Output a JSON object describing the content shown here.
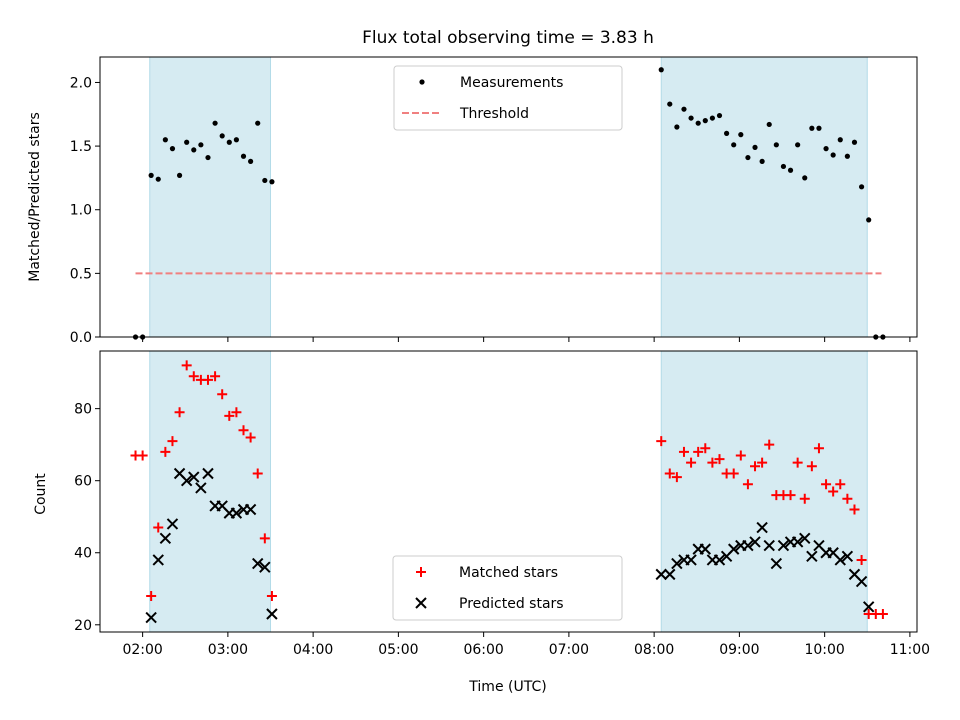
{
  "chart_data": [
    {
      "type": "scatter",
      "title": "Flux total observing time = 3.83 h",
      "xlabel": "",
      "ylabel": "Matched/Predicted stars",
      "ylim": [
        0.0,
        2.2
      ],
      "xlim": [
        "01:30",
        "11:05"
      ],
      "yticks": [
        "0.0",
        "0.5",
        "1.0",
        "1.5",
        "2.0"
      ],
      "legend_position": "top-center",
      "legend": [
        {
          "label": "Measurements",
          "marker": "dot",
          "color": "#000000"
        },
        {
          "label": "Threshold",
          "marker": "dashed-line",
          "color": "#f08080"
        }
      ],
      "observing_windows": [
        [
          "02:05",
          "03:30"
        ],
        [
          "08:05",
          "10:30"
        ]
      ],
      "threshold": {
        "value": 0.5,
        "from": "01:55",
        "to": "10:40"
      },
      "series": [
        {
          "name": "Measurements",
          "x": [
            "01:55",
            "02:00",
            "02:06",
            "02:11",
            "02:16",
            "02:21",
            "02:26",
            "02:31",
            "02:36",
            "02:41",
            "02:46",
            "02:51",
            "02:56",
            "03:01",
            "03:06",
            "03:11",
            "03:16",
            "03:21",
            "03:26",
            "03:31",
            "08:05",
            "08:11",
            "08:16",
            "08:21",
            "08:26",
            "08:31",
            "08:36",
            "08:41",
            "08:46",
            "08:51",
            "08:56",
            "09:01",
            "09:06",
            "09:11",
            "09:16",
            "09:21",
            "09:26",
            "09:31",
            "09:36",
            "09:41",
            "09:46",
            "09:51",
            "09:56",
            "10:01",
            "10:06",
            "10:11",
            "10:16",
            "10:21",
            "10:26",
            "10:31",
            "10:36",
            "10:41"
          ],
          "y": [
            0.0,
            0.0,
            1.27,
            1.24,
            1.55,
            1.48,
            1.27,
            1.53,
            1.47,
            1.51,
            1.41,
            1.68,
            1.58,
            1.53,
            1.55,
            1.42,
            1.38,
            1.68,
            1.23,
            1.22,
            2.1,
            1.83,
            1.65,
            1.79,
            1.72,
            1.68,
            1.7,
            1.72,
            1.74,
            1.6,
            1.51,
            1.59,
            1.41,
            1.49,
            1.38,
            1.67,
            1.51,
            1.34,
            1.31,
            1.51,
            1.25,
            1.64,
            1.64,
            1.48,
            1.43,
            1.55,
            1.42,
            1.53,
            1.18,
            0.92,
            0.0,
            0.0
          ]
        }
      ]
    },
    {
      "type": "scatter",
      "title": "",
      "xlabel": "Time (UTC)",
      "ylabel": "Count",
      "ylim": [
        18,
        96
      ],
      "xlim": [
        "01:30",
        "11:05"
      ],
      "yticks": [
        "20",
        "40",
        "60",
        "80"
      ],
      "xticks": [
        "02:00",
        "03:00",
        "04:00",
        "05:00",
        "06:00",
        "07:00",
        "08:00",
        "09:00",
        "10:00",
        "11:00"
      ],
      "legend_position": "bottom-center",
      "legend": [
        {
          "label": "Matched stars",
          "marker": "plus",
          "color": "#ff0000"
        },
        {
          "label": "Predicted stars",
          "marker": "x",
          "color": "#000000"
        }
      ],
      "observing_windows": [
        [
          "02:05",
          "03:30"
        ],
        [
          "08:05",
          "10:30"
        ]
      ],
      "series": [
        {
          "name": "Matched stars",
          "x": [
            "01:55",
            "02:00",
            "02:06",
            "02:11",
            "02:16",
            "02:21",
            "02:26",
            "02:31",
            "02:36",
            "02:41",
            "02:46",
            "02:51",
            "02:56",
            "03:01",
            "03:06",
            "03:11",
            "03:16",
            "03:21",
            "03:26",
            "03:31",
            "08:05",
            "08:11",
            "08:16",
            "08:21",
            "08:26",
            "08:31",
            "08:36",
            "08:41",
            "08:46",
            "08:51",
            "08:56",
            "09:01",
            "09:06",
            "09:11",
            "09:16",
            "09:21",
            "09:26",
            "09:31",
            "09:36",
            "09:41",
            "09:46",
            "09:51",
            "09:56",
            "10:01",
            "10:06",
            "10:11",
            "10:16",
            "10:21",
            "10:26",
            "10:31",
            "10:36",
            "10:41"
          ],
          "y": [
            67,
            67,
            28,
            47,
            68,
            71,
            79,
            92,
            89,
            88,
            88,
            89,
            84,
            78,
            79,
            74,
            72,
            62,
            44,
            28,
            71,
            62,
            61,
            68,
            65,
            68,
            69,
            65,
            66,
            62,
            62,
            67,
            59,
            64,
            65,
            70,
            56,
            56,
            56,
            65,
            55,
            64,
            69,
            59,
            57,
            59,
            55,
            52,
            38,
            23,
            23,
            23
          ]
        },
        {
          "name": "Predicted stars",
          "x": [
            "02:06",
            "02:11",
            "02:16",
            "02:21",
            "02:26",
            "02:31",
            "02:36",
            "02:41",
            "02:46",
            "02:51",
            "02:56",
            "03:01",
            "03:06",
            "03:11",
            "03:16",
            "03:21",
            "03:26",
            "03:31",
            "08:05",
            "08:11",
            "08:16",
            "08:21",
            "08:26",
            "08:31",
            "08:36",
            "08:41",
            "08:46",
            "08:51",
            "08:56",
            "09:01",
            "09:06",
            "09:11",
            "09:16",
            "09:21",
            "09:26",
            "09:31",
            "09:36",
            "09:41",
            "09:46",
            "09:51",
            "09:56",
            "10:01",
            "10:06",
            "10:11",
            "10:16",
            "10:21",
            "10:26",
            "10:31"
          ],
          "y": [
            22,
            38,
            44,
            48,
            62,
            60,
            61,
            58,
            62,
            53,
            53,
            51,
            51,
            52,
            52,
            37,
            36,
            23,
            34,
            34,
            37,
            38,
            38,
            41,
            41,
            38,
            38,
            39,
            41,
            42,
            42,
            43,
            47,
            42,
            37,
            42,
            43,
            43,
            44,
            39,
            42,
            40,
            40,
            38,
            39,
            34,
            32,
            25
          ]
        }
      ]
    }
  ]
}
